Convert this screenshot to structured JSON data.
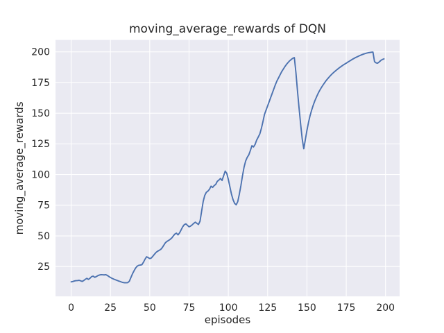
{
  "figure": {
    "title": "moving_average_rewards of DQN",
    "xlabel": "episodes",
    "ylabel": "moving_average_rewards"
  },
  "chart_data": {
    "type": "line",
    "title": "moving_average_rewards of DQN",
    "xlabel": "episodes",
    "ylabel": "moving_average_rewards",
    "grid": true,
    "legend_position": "none",
    "x_ticks": [
      0,
      25,
      50,
      75,
      100,
      125,
      150,
      175,
      200
    ],
    "y_ticks": [
      25,
      50,
      75,
      100,
      125,
      150,
      175,
      200
    ],
    "xlim": [
      -9.95,
      208.95
    ],
    "ylim": [
      0.7,
      209.7
    ],
    "colors": {
      "line": "#4c72b0",
      "plot_background": "#eaeaf2",
      "figure_background": "#ffffff",
      "grid": "#ffffff",
      "text": "#262626"
    },
    "series": [
      {
        "name": "moving_average_rewards",
        "x_start": 0,
        "x_step": 1,
        "values": [
          12.5,
          12.8,
          13.2,
          13.5,
          13.6,
          13.8,
          13.4,
          12.9,
          13.6,
          14.6,
          15.4,
          14.5,
          15.5,
          16.8,
          17.2,
          16.2,
          16.8,
          17.6,
          18.1,
          18.4,
          18.3,
          18.2,
          18.4,
          17.8,
          16.9,
          16.1,
          15.4,
          14.8,
          14.3,
          13.8,
          13.3,
          12.9,
          12.4,
          12.0,
          11.8,
          11.8,
          11.9,
          13.0,
          16.0,
          19.0,
          21.5,
          23.8,
          25.3,
          26.0,
          26.2,
          26.5,
          28.5,
          31.0,
          33.0,
          32.3,
          31.5,
          32.0,
          33.5,
          35.0,
          36.5,
          37.5,
          38.2,
          39.0,
          40.5,
          42.5,
          44.5,
          45.5,
          46.3,
          47.2,
          48.3,
          50.0,
          51.5,
          52.2,
          50.8,
          52.5,
          55.0,
          57.5,
          59.2,
          59.8,
          58.6,
          57.4,
          58.0,
          59.0,
          60.2,
          61.2,
          60.2,
          59.3,
          62.0,
          70.0,
          78.0,
          83.0,
          85.5,
          86.5,
          88.0,
          90.5,
          89.5,
          91.0,
          92.0,
          94.5,
          95.5,
          96.8,
          95.2,
          99.0,
          102.8,
          101.0,
          96.0,
          90.0,
          84.0,
          79.5,
          76.5,
          75.3,
          78.0,
          84.0,
          91.0,
          99.0,
          106.0,
          111.0,
          114.0,
          116.0,
          119.5,
          123.5,
          122.5,
          124.5,
          128.0,
          130.5,
          133.0,
          137.5,
          143.0,
          149.0,
          152.5,
          156.0,
          159.5,
          163.0,
          166.5,
          170.0,
          173.5,
          176.5,
          179.0,
          181.5,
          184.0,
          186.0,
          188.0,
          189.8,
          191.3,
          192.7,
          193.8,
          194.8,
          195.3,
          183.0,
          168.0,
          154.0,
          141.0,
          129.0,
          121.0,
          128.5,
          136.0,
          142.5,
          148.0,
          152.5,
          156.5,
          160.0,
          163.0,
          165.8,
          168.3,
          170.5,
          172.5,
          174.4,
          176.2,
          177.8,
          179.3,
          180.7,
          182.0,
          183.2,
          184.3,
          185.4,
          186.4,
          187.4,
          188.3,
          189.2,
          190.0,
          190.8,
          191.6,
          192.4,
          193.2,
          194.0,
          194.7,
          195.4,
          196.0,
          196.6,
          197.2,
          197.7,
          198.2,
          198.6,
          199.0,
          199.3,
          199.5,
          199.7,
          199.8,
          192.0,
          191.0,
          190.8,
          191.8,
          193.0,
          193.8,
          194.3
        ]
      }
    ]
  }
}
